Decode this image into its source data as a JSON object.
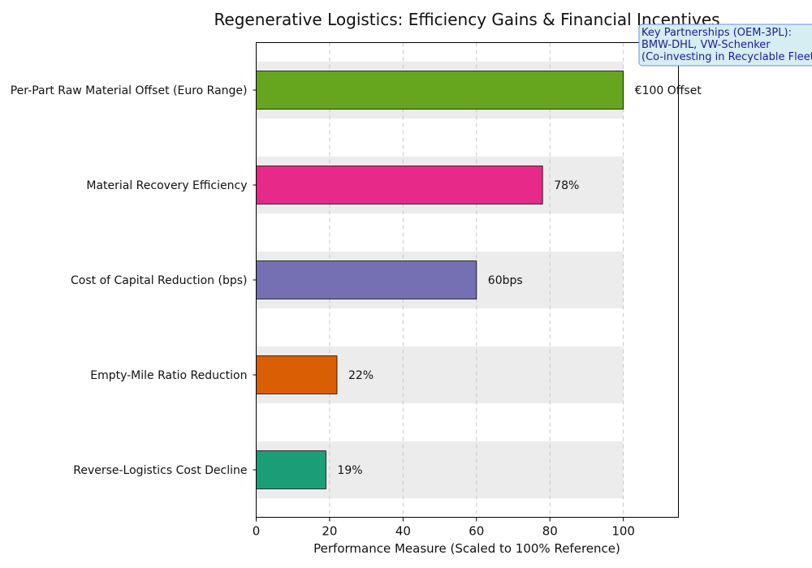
{
  "chart_data": {
    "type": "bar",
    "orientation": "horizontal",
    "title": "Regenerative Logistics: Efficiency Gains & Financial Incentives",
    "xlabel": "Performance Measure (Scaled to 100% Reference)",
    "ylabel": "",
    "xlim": [
      0,
      115
    ],
    "xticks": [
      0,
      20,
      40,
      60,
      80,
      100
    ],
    "grid": true,
    "reference_value": 100,
    "categories": [
      "Per-Part Raw Material Offset (Euro Range)",
      "Material Recovery Efficiency",
      "Cost of Capital Reduction (bps)",
      "Empty-Mile Ratio Reduction",
      "Reverse-Logistics Cost Decline"
    ],
    "values": [
      100,
      78,
      60,
      22,
      19
    ],
    "data_labels": [
      "€100 Offset",
      "78%",
      "60bps",
      "22%",
      "19%"
    ],
    "colors": [
      "#66a61e",
      "#e7298a",
      "#7570b3",
      "#d95f02",
      "#1b9e77"
    ],
    "annotation": {
      "heading": "Key Partnerships (OEM-3PL):",
      "line1": "BMW-DHL, VW-Schenker",
      "line2": "(Co-investing in Recyclable Fleets)",
      "placement": "top-right"
    }
  }
}
